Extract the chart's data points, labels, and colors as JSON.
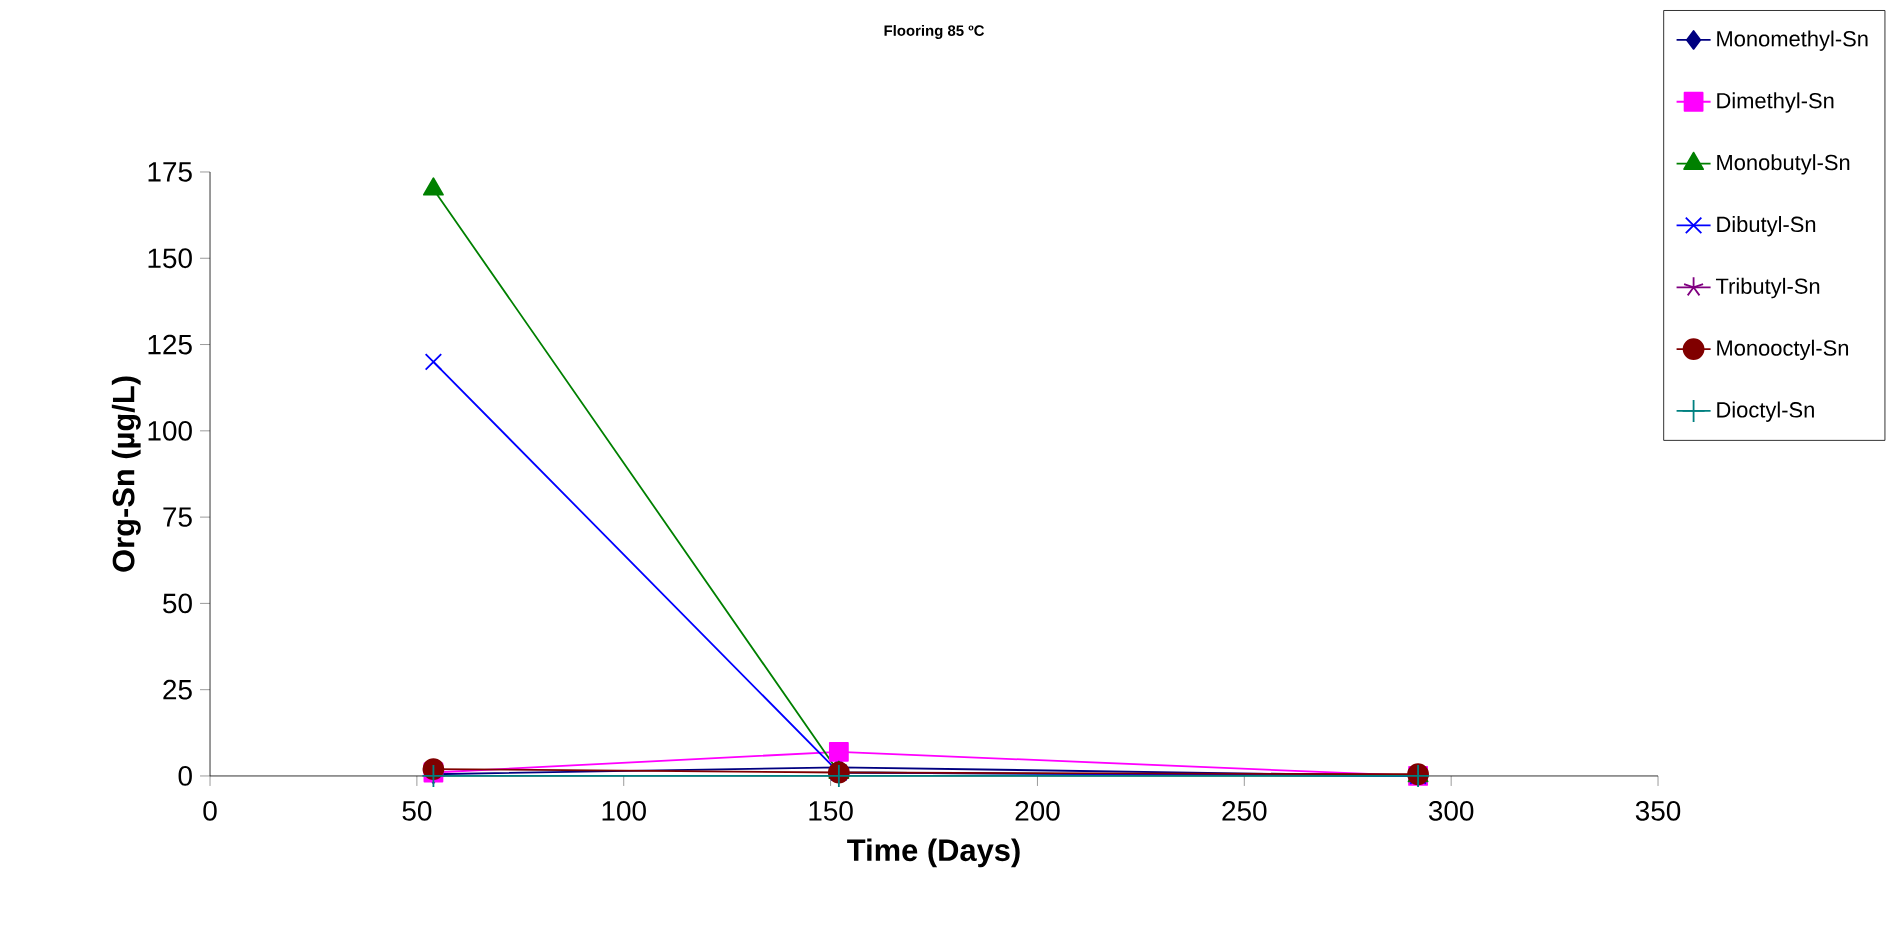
{
  "chart_data": {
    "type": "line",
    "title": "Flooring 85 ºC",
    "xlabel": "Time (Days)",
    "ylabel": "Org-Sn (µg/L)",
    "x": [
      54,
      152,
      292
    ],
    "series": [
      {
        "name": "Monomethyl-Sn",
        "color": "#000080",
        "marker": "diamond",
        "values": [
          0.5,
          2.5,
          0
        ]
      },
      {
        "name": "Dimethyl-Sn",
        "color": "#ff00ff",
        "marker": "square",
        "values": [
          1,
          7,
          0
        ]
      },
      {
        "name": "Monobutyl-Sn",
        "color": "#008000",
        "marker": "triangle",
        "values": [
          170,
          1,
          0
        ]
      },
      {
        "name": "Dibutyl-Sn",
        "color": "#0000ff",
        "marker": "cross",
        "values": [
          120,
          1,
          0
        ]
      },
      {
        "name": "Tributyl-Sn",
        "color": "#800080",
        "marker": "star",
        "values": [
          null,
          null,
          null
        ]
      },
      {
        "name": "Monooctyl-Sn",
        "color": "#800000",
        "marker": "circle",
        "values": [
          2,
          1,
          0.5
        ]
      },
      {
        "name": "Dioctyl-Sn",
        "color": "#008080",
        "marker": "plus",
        "values": [
          0,
          0,
          0
        ]
      }
    ],
    "xlim": [
      0,
      350
    ],
    "xticks": [
      0,
      50,
      100,
      150,
      200,
      250,
      300,
      350
    ],
    "ylim": [
      0,
      175
    ],
    "yticks": [
      0,
      25,
      50,
      75,
      100,
      125,
      150,
      175
    ],
    "grid": false,
    "legend": "top right"
  }
}
